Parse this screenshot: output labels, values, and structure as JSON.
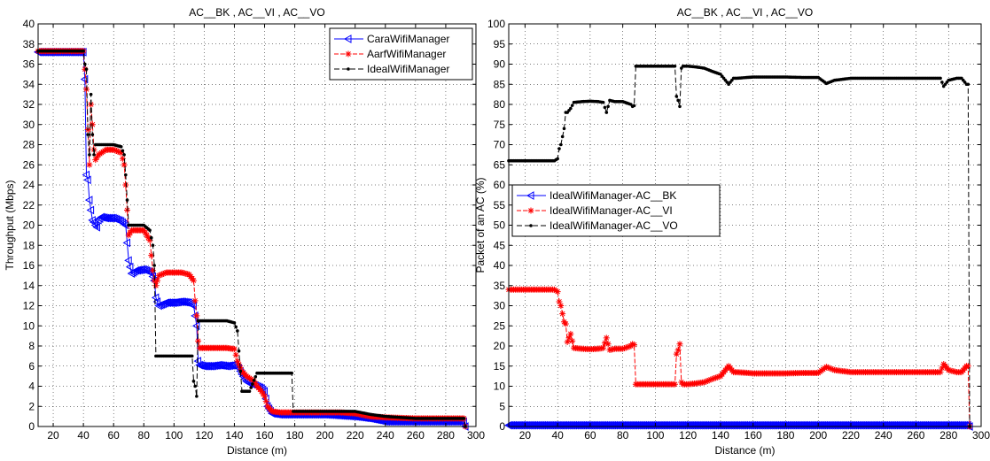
{
  "chart_data": [
    {
      "type": "line",
      "title": "AC__BK , AC__VI , AC__VO",
      "xlabel": "Distance (m)",
      "ylabel": "Throughput (Mbps)",
      "xlim": [
        10,
        300
      ],
      "ylim": [
        0,
        40
      ],
      "xticks": [
        20,
        40,
        60,
        80,
        100,
        120,
        140,
        160,
        180,
        200,
        220,
        240,
        260,
        280,
        300
      ],
      "yticks": [
        0,
        2,
        4,
        6,
        8,
        10,
        12,
        14,
        16,
        18,
        20,
        22,
        24,
        26,
        28,
        30,
        32,
        34,
        36,
        38,
        40
      ],
      "grid": true,
      "legend_position": "top-right",
      "series": [
        {
          "name": "CaraWifiManager",
          "color": "#0000ff",
          "marker": "triangle-left",
          "x": [
            10,
            40,
            41,
            42,
            43,
            44,
            45,
            46,
            47,
            48,
            49,
            50,
            52,
            55,
            60,
            65,
            68,
            70,
            72,
            75,
            80,
            85,
            87,
            88,
            90,
            95,
            100,
            105,
            110,
            113,
            115,
            116,
            117,
            120,
            125,
            130,
            135,
            140,
            143,
            145,
            148,
            150,
            152,
            155,
            158,
            160,
            162,
            165,
            170,
            180,
            200,
            210,
            220,
            230,
            240,
            260,
            280,
            292,
            293
          ],
          "y": [
            37.2,
            37.2,
            34.5,
            25,
            24.5,
            22.5,
            21.5,
            20.5,
            20.3,
            20.0,
            19.8,
            20.5,
            20.8,
            20.7,
            20.7,
            20.4,
            20.0,
            16.5,
            15.2,
            15.5,
            15.6,
            15.3,
            14.5,
            12.8,
            12.0,
            12.3,
            12.3,
            12.4,
            12.3,
            12.0,
            10.0,
            6.5,
            6.1,
            6.0,
            6.0,
            6.1,
            6.0,
            6.1,
            5.8,
            5.2,
            4.5,
            4.3,
            4.2,
            4.0,
            3.8,
            3.5,
            2.0,
            1.3,
            1.2,
            1.2,
            1.2,
            1.1,
            1.0,
            0.8,
            0.5,
            0.5,
            0.5,
            0.5,
            0.0
          ]
        },
        {
          "name": "AarfWifiManager",
          "color": "#ff0000",
          "marker": "star",
          "x": [
            10,
            40,
            41,
            42,
            43,
            44,
            45,
            46,
            47,
            48,
            50,
            55,
            60,
            65,
            67,
            68,
            70,
            72,
            75,
            80,
            84,
            86,
            87,
            88,
            90,
            95,
            100,
            105,
            110,
            113,
            114,
            115,
            116,
            117,
            120,
            125,
            130,
            135,
            140,
            142,
            145,
            148,
            150,
            153,
            155,
            158,
            160,
            162,
            165,
            170,
            180,
            200,
            210,
            220,
            230,
            240,
            260,
            280,
            292,
            293
          ],
          "y": [
            37.3,
            37.3,
            35.5,
            33.5,
            29.5,
            26.0,
            32.0,
            30.0,
            27.5,
            26.5,
            27.0,
            27.5,
            27.5,
            27.2,
            26.0,
            24.0,
            19.0,
            19.5,
            19.5,
            19.5,
            18.5,
            15.5,
            14.5,
            14.0,
            15.0,
            15.3,
            15.3,
            15.3,
            15.1,
            14.5,
            12.5,
            11.0,
            8.5,
            7.8,
            7.8,
            7.8,
            7.8,
            7.8,
            7.7,
            6.5,
            5.5,
            5.0,
            4.8,
            4.5,
            4.0,
            3.5,
            3.0,
            2.0,
            1.5,
            1.4,
            1.4,
            1.4,
            1.4,
            1.3,
            1.0,
            0.9,
            0.8,
            0.8,
            0.8,
            0.0
          ]
        },
        {
          "name": "IdealWifiManager",
          "color": "#000000",
          "marker": "dot",
          "x": [
            10,
            40,
            41,
            42,
            43,
            44,
            45,
            46,
            47,
            48,
            50,
            55,
            60,
            65,
            67,
            68,
            70,
            75,
            80,
            84,
            86,
            87,
            88,
            90,
            95,
            100,
            105,
            110,
            112,
            113,
            114,
            115,
            116,
            117,
            120,
            125,
            130,
            135,
            140,
            142,
            145,
            150,
            155,
            160,
            162,
            165,
            170,
            175,
            178,
            179,
            180,
            190,
            200,
            210,
            220,
            230,
            240,
            260,
            280,
            292,
            293
          ],
          "y": [
            37.3,
            37.3,
            36.0,
            35.5,
            29.0,
            27.0,
            33.0,
            29.0,
            27.0,
            28.0,
            28.0,
            28.0,
            28.0,
            27.8,
            27.0,
            25.0,
            20.0,
            20.0,
            20.0,
            19.5,
            18.0,
            16.0,
            7.0,
            7.0,
            7.0,
            7.0,
            7.0,
            7.0,
            7.0,
            4.5,
            4.0,
            3.0,
            10.5,
            10.5,
            10.5,
            10.5,
            10.5,
            10.5,
            10.3,
            9.5,
            3.5,
            3.5,
            5.3,
            5.3,
            5.3,
            5.3,
            5.3,
            5.3,
            5.3,
            1.5,
            1.5,
            1.5,
            1.5,
            1.5,
            1.5,
            1.2,
            1.0,
            0.8,
            0.8,
            0.8,
            0.0
          ]
        }
      ]
    },
    {
      "type": "line",
      "title": "AC__BK , AC__VI , AC__VO",
      "xlabel": "Distance (m)",
      "ylabel": "Packet of an AC (%)",
      "xlim": [
        10,
        300
      ],
      "ylim": [
        0,
        100
      ],
      "xticks": [
        20,
        40,
        60,
        80,
        100,
        120,
        140,
        160,
        180,
        200,
        220,
        240,
        260,
        280,
        300
      ],
      "yticks": [
        0,
        5,
        10,
        15,
        20,
        25,
        30,
        35,
        40,
        45,
        50,
        55,
        60,
        65,
        70,
        75,
        80,
        85,
        90,
        95,
        100
      ],
      "grid": true,
      "legend_position": "center-left",
      "series": [
        {
          "name": "IdealWifiManager-AC__BK",
          "color": "#0000ff",
          "marker": "triangle-left",
          "x": [
            10,
            50,
            100,
            150,
            200,
            250,
            292,
            293
          ],
          "y": [
            0.3,
            0.3,
            0.3,
            0.3,
            0.3,
            0.3,
            0.3,
            0.0
          ]
        },
        {
          "name": "IdealWifiManager-AC__VI",
          "color": "#ff0000",
          "marker": "star",
          "x": [
            10,
            38,
            40,
            41,
            42,
            43,
            44,
            45,
            46,
            48,
            50,
            55,
            60,
            65,
            68,
            70,
            72,
            75,
            80,
            85,
            86,
            87,
            88,
            90,
            100,
            110,
            112,
            113,
            114,
            115,
            116,
            117,
            120,
            125,
            130,
            135,
            140,
            143,
            145,
            148,
            150,
            160,
            170,
            180,
            190,
            200,
            205,
            210,
            220,
            230,
            240,
            250,
            260,
            270,
            275,
            277,
            280,
            285,
            288,
            291,
            292,
            293
          ],
          "y": [
            34.0,
            34.0,
            33.5,
            31.0,
            30.0,
            28.0,
            26.0,
            25.5,
            21.0,
            23.0,
            19.5,
            19.3,
            19.2,
            19.3,
            19.5,
            22.0,
            19.0,
            19.3,
            19.3,
            20.0,
            20.5,
            20.3,
            10.5,
            10.5,
            10.5,
            10.5,
            10.5,
            18.0,
            19.0,
            20.5,
            11.0,
            10.5,
            10.5,
            10.7,
            11.0,
            11.8,
            12.5,
            14.0,
            15.0,
            13.5,
            13.5,
            13.2,
            13.2,
            13.2,
            13.3,
            13.3,
            14.8,
            14.0,
            13.5,
            13.5,
            13.5,
            13.5,
            13.5,
            13.5,
            13.5,
            15.5,
            14.0,
            13.5,
            13.5,
            15.0,
            15.0,
            0.0
          ]
        },
        {
          "name": "IdealWifiManager-AC__VO",
          "color": "#000000",
          "marker": "dot",
          "x": [
            10,
            38,
            40,
            41,
            42,
            43,
            44,
            45,
            46,
            48,
            50,
            55,
            60,
            65,
            68,
            70,
            72,
            75,
            80,
            85,
            86,
            87,
            88,
            90,
            100,
            110,
            112,
            113,
            114,
            115,
            116,
            117,
            120,
            125,
            130,
            135,
            140,
            143,
            145,
            148,
            150,
            160,
            170,
            180,
            190,
            200,
            205,
            210,
            220,
            230,
            240,
            250,
            260,
            270,
            275,
            277,
            280,
            285,
            288,
            291,
            292,
            293
          ],
          "y": [
            66.0,
            66.0,
            66.5,
            69.0,
            70.0,
            72.0,
            74.0,
            78.0,
            78.0,
            79.0,
            80.5,
            80.7,
            80.8,
            80.7,
            80.5,
            78.0,
            81.0,
            80.7,
            80.7,
            80.0,
            79.5,
            79.7,
            89.5,
            89.5,
            89.5,
            89.5,
            89.5,
            82.0,
            81.0,
            79.5,
            89.0,
            89.5,
            89.5,
            89.3,
            89.0,
            88.2,
            87.5,
            86.0,
            85.0,
            86.5,
            86.5,
            86.8,
            86.8,
            86.8,
            86.7,
            86.7,
            85.2,
            86.0,
            86.5,
            86.5,
            86.5,
            86.5,
            86.5,
            86.5,
            86.5,
            84.5,
            86.0,
            86.5,
            86.5,
            85.0,
            85.0,
            0.0
          ]
        }
      ]
    }
  ]
}
